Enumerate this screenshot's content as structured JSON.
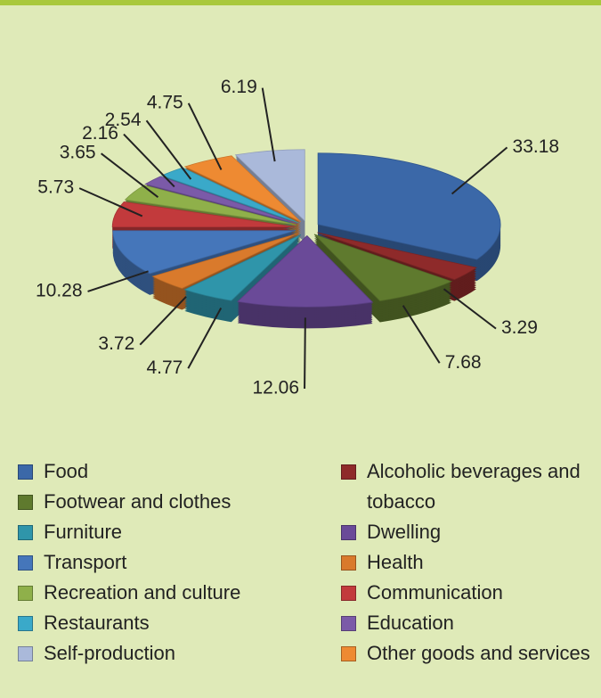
{
  "chart_data": {
    "type": "pie",
    "categories": [
      "Food",
      "Alcoholic beverages and tobacco",
      "Footwear and clothes",
      "Dwelling",
      "Furniture",
      "Health",
      "Transport",
      "Communication",
      "Recreation and culture",
      "Education",
      "Restaurants",
      "Other goods and services",
      "Self-production"
    ],
    "values": [
      33.18,
      3.29,
      7.68,
      12.06,
      4.77,
      3.72,
      10.28,
      5.73,
      3.65,
      2.16,
      2.54,
      4.75,
      6.19
    ],
    "colors": [
      "#3b68a8",
      "#8e2a2a",
      "#5f7a2e",
      "#6a4a98",
      "#2f95aa",
      "#d97a2c",
      "#4576ba",
      "#c23a3c",
      "#8fb04a",
      "#7b5aa8",
      "#3aa9c9",
      "#ee8a32",
      "#aab9da"
    ],
    "legend": "bottom"
  }
}
